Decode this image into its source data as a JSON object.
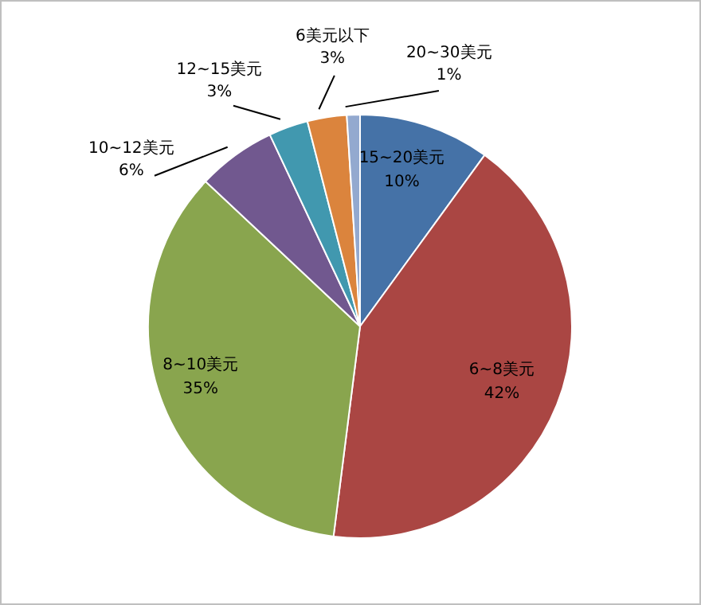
{
  "chart_data": {
    "type": "pie",
    "categories": [
      "15~20美元",
      "6~8美元",
      "8~10美元",
      "10~12美元",
      "12~15美元",
      "6美元以下",
      "20~30美元"
    ],
    "values": [
      10,
      42,
      35,
      6,
      3,
      3,
      1
    ],
    "colors": [
      "#4572a7",
      "#aa4643",
      "#89a54e",
      "#71588f",
      "#4198af",
      "#db843d",
      "#93a9cf"
    ],
    "value_labels": [
      "10%",
      "42%",
      "35%",
      "6%",
      "3%",
      "3%",
      "1%"
    ],
    "legend": false
  }
}
